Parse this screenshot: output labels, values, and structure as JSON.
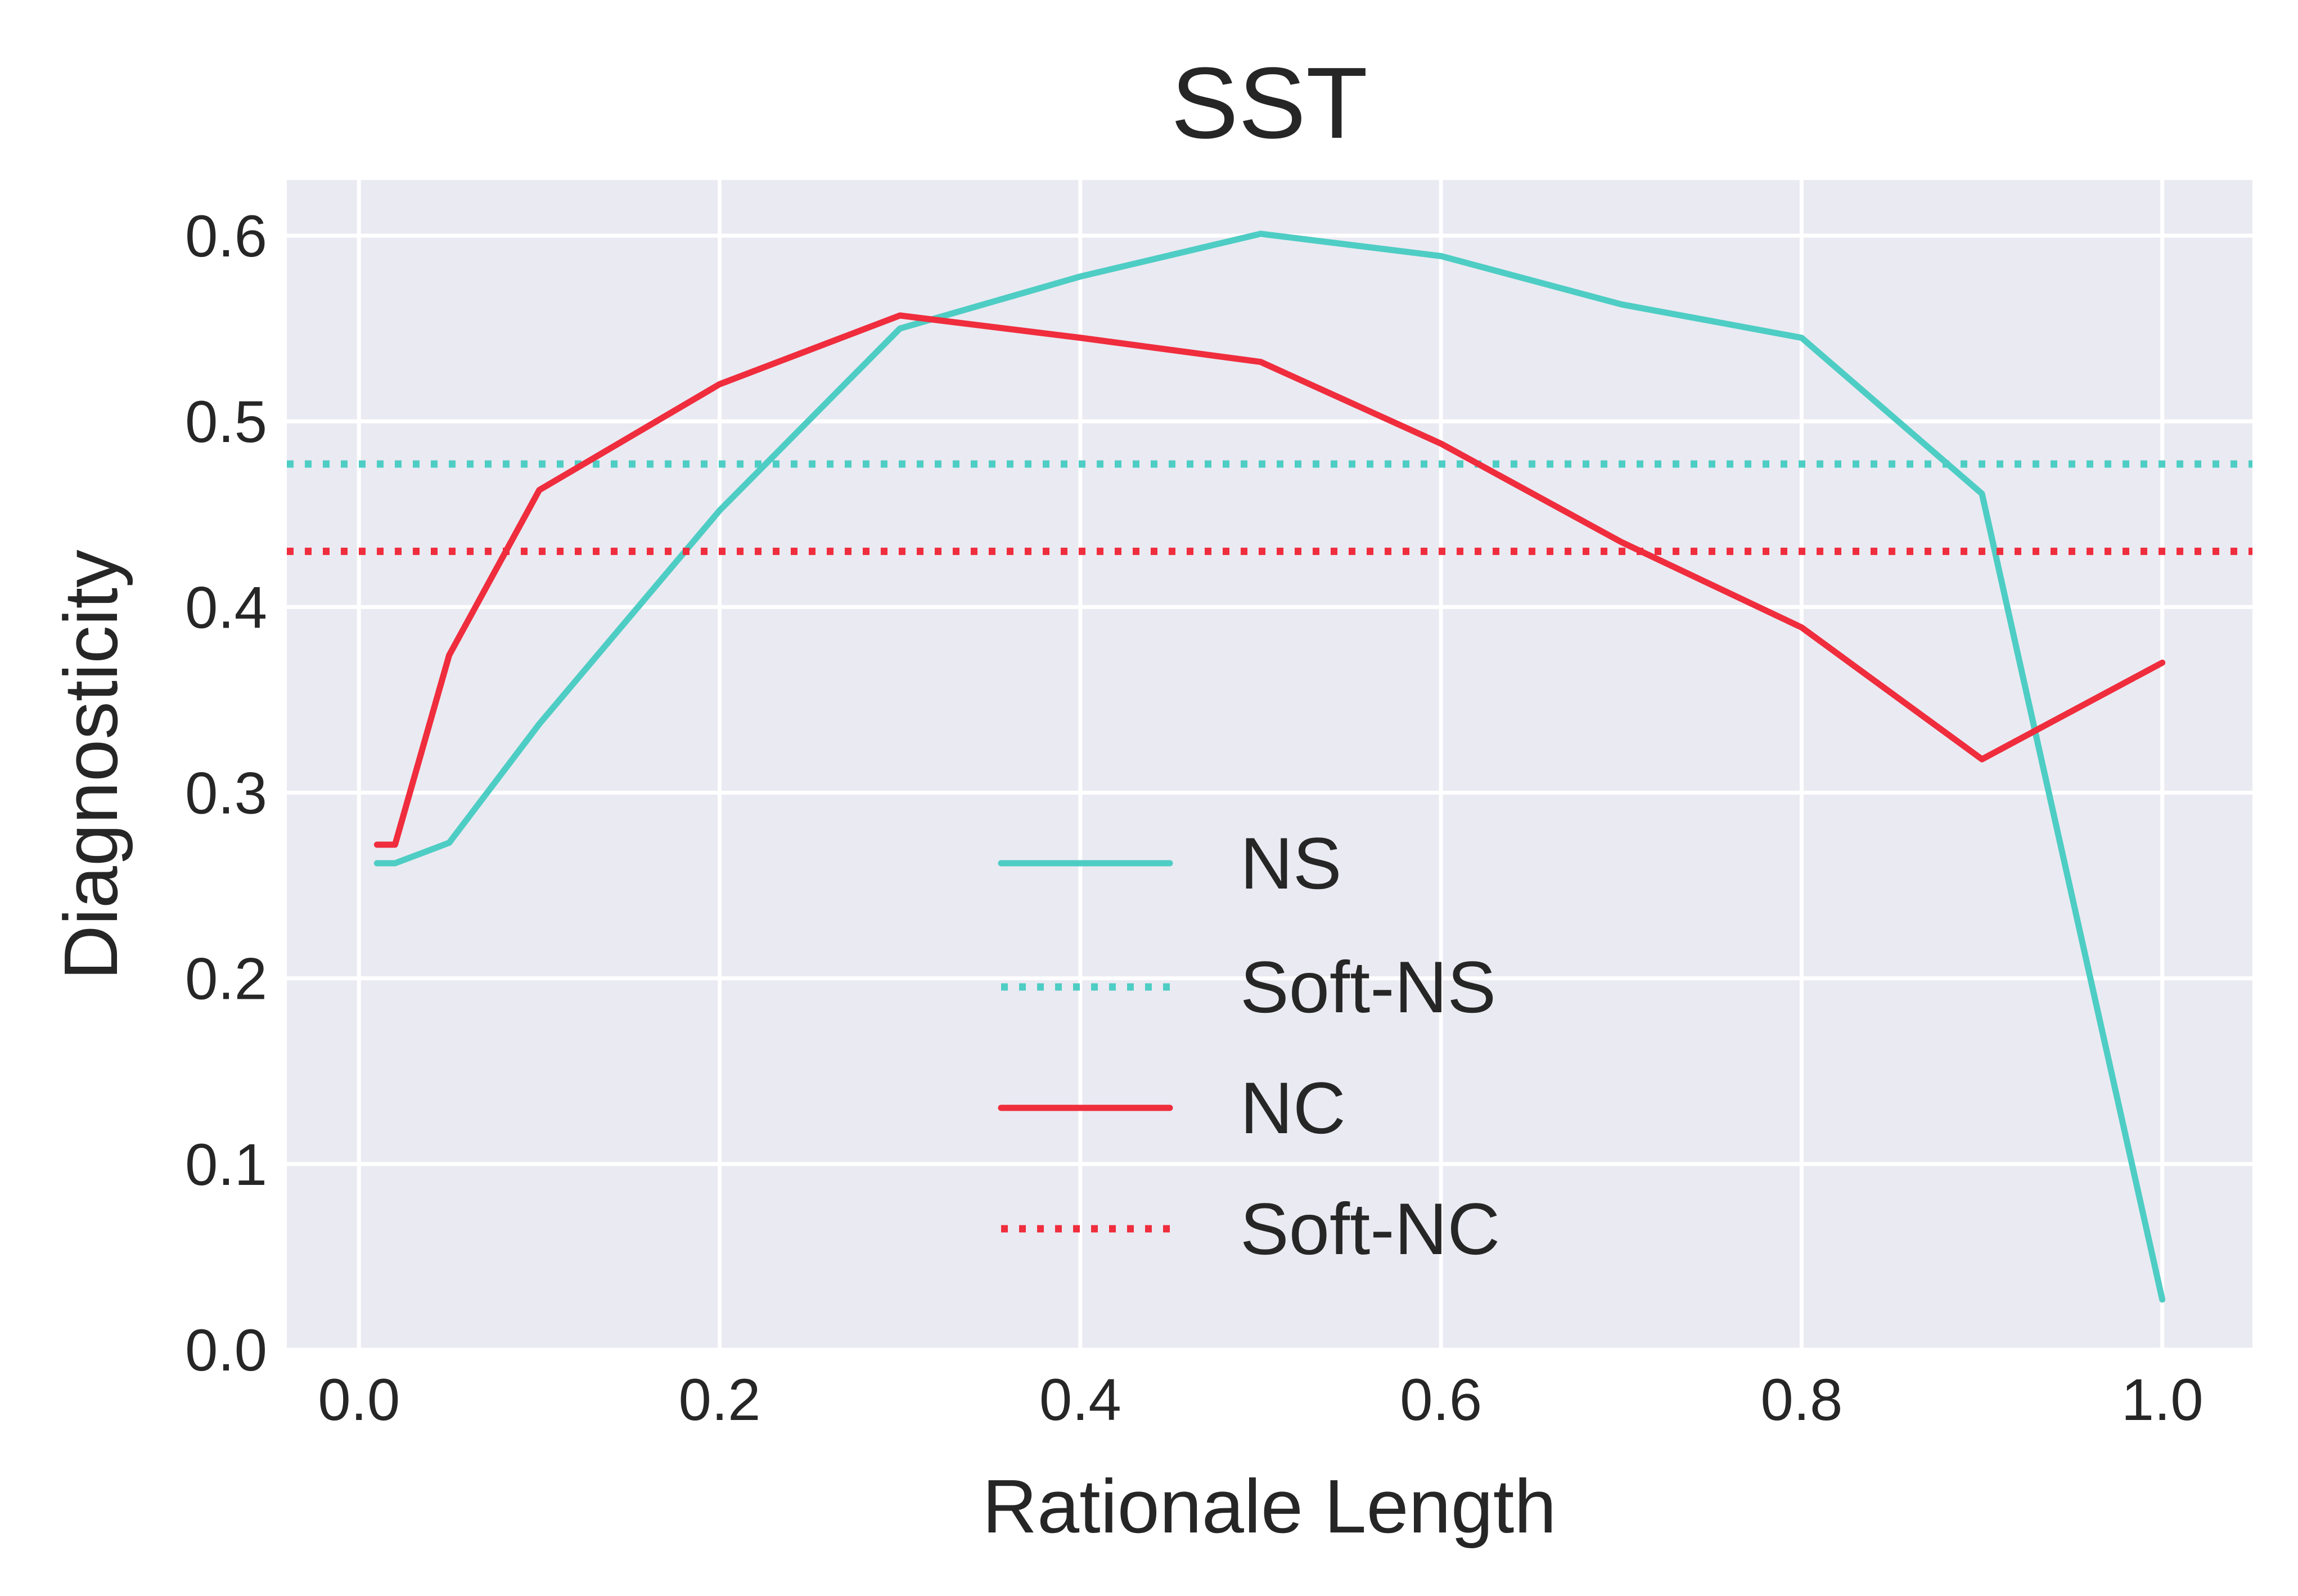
{
  "chart_data": {
    "type": "line",
    "title": "SST",
    "xlabel": "Rationale Length",
    "ylabel": "Diagnosticity",
    "xlim": [
      -0.04,
      1.05
    ],
    "ylim": [
      0.0,
      0.63
    ],
    "xticks": [
      0.0,
      0.2,
      0.4,
      0.6,
      0.8,
      1.0
    ],
    "xtick_labels": [
      "0.0",
      "0.2",
      "0.4",
      "0.6",
      "0.8",
      "1.0"
    ],
    "yticks": [
      0.0,
      0.1,
      0.2,
      0.3,
      0.4,
      0.5,
      0.6
    ],
    "ytick_labels": [
      "0.0",
      "0.1",
      "0.2",
      "0.3",
      "0.4",
      "0.5",
      "0.6"
    ],
    "grid": true,
    "legend_position": "lower-center",
    "colors": {
      "NS": "#4ecdc4",
      "NC": "#ef2d3d"
    },
    "series": [
      {
        "name": "NS",
        "style": "solid",
        "color": "#4ecdc4",
        "x": [
          0.01,
          0.02,
          0.05,
          0.1,
          0.2,
          0.3,
          0.4,
          0.5,
          0.6,
          0.7,
          0.8,
          0.9,
          1.0
        ],
        "y": [
          0.262,
          0.262,
          0.273,
          0.337,
          0.452,
          0.55,
          0.578,
          0.601,
          0.589,
          0.563,
          0.545,
          0.461,
          0.027
        ]
      },
      {
        "name": "Soft-NS",
        "style": "dotted",
        "color": "#4ecdc4",
        "constant": 0.477
      },
      {
        "name": "NC",
        "style": "solid",
        "color": "#ef2d3d",
        "x": [
          0.01,
          0.02,
          0.05,
          0.1,
          0.2,
          0.3,
          0.4,
          0.5,
          0.6,
          0.7,
          0.8,
          0.9,
          1.0
        ],
        "y": [
          0.272,
          0.272,
          0.374,
          0.463,
          0.52,
          0.557,
          0.545,
          0.532,
          0.488,
          0.435,
          0.389,
          0.318,
          0.37
        ]
      },
      {
        "name": "Soft-NC",
        "style": "dotted",
        "color": "#ef2d3d",
        "constant": 0.43
      }
    ]
  }
}
